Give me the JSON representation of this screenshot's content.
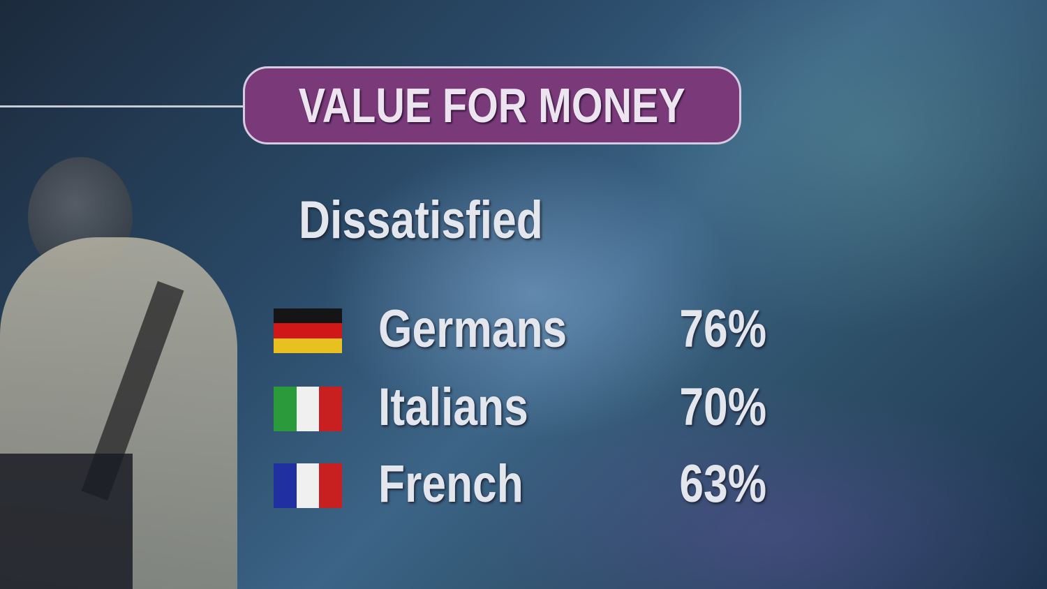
{
  "title": "VALUE FOR MONEY",
  "subtitle": "Dissatisfied",
  "chart_data": {
    "type": "table",
    "title": "VALUE FOR MONEY",
    "subtitle": "Dissatisfied",
    "rows": [
      {
        "label": "Germans",
        "value": "76%",
        "flag": "germany-flag",
        "colors": [
          "#151515",
          "#d01818",
          "#e8c020"
        ]
      },
      {
        "label": "Italians",
        "value": "70%",
        "flag": "italy-flag",
        "colors": [
          "#2a9a3a",
          "#f0f0f0",
          "#c82020"
        ]
      },
      {
        "label": "French",
        "value": "63%",
        "flag": "france-flag",
        "colors": [
          "#2030a0",
          "#f0f0f0",
          "#c82020"
        ]
      }
    ]
  },
  "colors": {
    "title_bg": "#7a3a7a",
    "title_border": "#d6cbe0",
    "text": "#e4e6ee"
  }
}
